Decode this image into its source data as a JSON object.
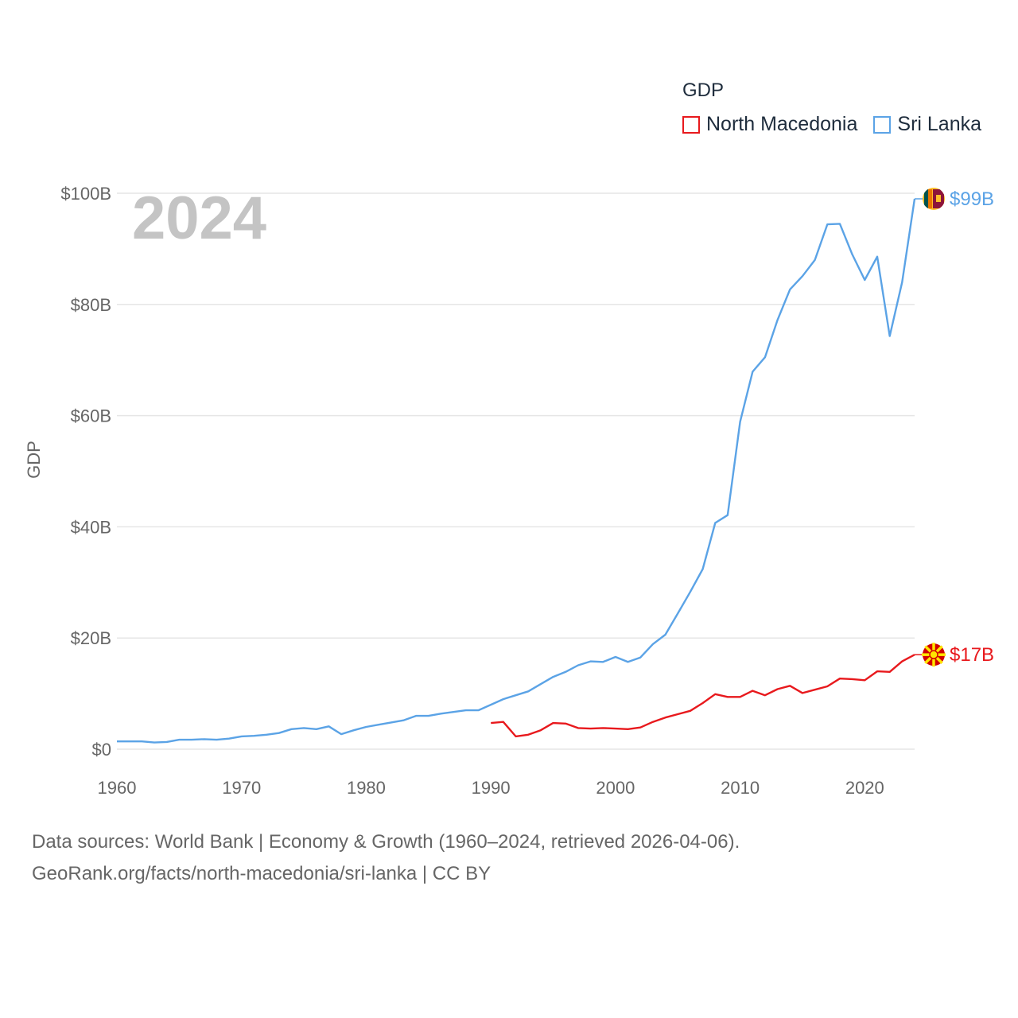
{
  "legend": {
    "title": "GDP",
    "items": [
      {
        "label": "North Macedonia",
        "color": "#e8191d"
      },
      {
        "label": "Sri Lanka",
        "color": "#5ba3e6"
      }
    ]
  },
  "source_line1": "Data sources: World Bank | Economy & Growth (1960–2024, retrieved 2026-04-06).",
  "source_line2": "GeoRank.org/facts/north-macedonia/sri-lanka | CC BY",
  "chart_data": {
    "type": "line",
    "title": "GDP",
    "year_label": "2024",
    "xlabel": "",
    "ylabel": "GDP",
    "xlim": [
      1960,
      2024
    ],
    "ylim": [
      0,
      100
    ],
    "x_ticks": [
      1960,
      1970,
      1980,
      1990,
      2000,
      2010,
      2020
    ],
    "y_ticks": [
      {
        "value": 0,
        "label": "$0"
      },
      {
        "value": 20,
        "label": "$20B"
      },
      {
        "value": 40,
        "label": "$40B"
      },
      {
        "value": 60,
        "label": "$60B"
      },
      {
        "value": 80,
        "label": "$80B"
      },
      {
        "value": 100,
        "label": "$100B"
      }
    ],
    "grid": true,
    "series": [
      {
        "name": "Sri Lanka",
        "color": "#5ba3e6",
        "end_label": "$99B",
        "flag_icon": "sri-lanka-flag-icon",
        "x": [
          1960,
          1961,
          1962,
          1963,
          1964,
          1965,
          1966,
          1967,
          1968,
          1969,
          1970,
          1971,
          1972,
          1973,
          1974,
          1975,
          1976,
          1977,
          1978,
          1979,
          1980,
          1981,
          1982,
          1983,
          1984,
          1985,
          1986,
          1987,
          1988,
          1989,
          1990,
          1991,
          1992,
          1993,
          1994,
          1995,
          1996,
          1997,
          1998,
          1999,
          2000,
          2001,
          2002,
          2003,
          2004,
          2005,
          2006,
          2007,
          2008,
          2009,
          2010,
          2011,
          2012,
          2013,
          2014,
          2015,
          2016,
          2017,
          2018,
          2019,
          2020,
          2021,
          2022,
          2023,
          2024
        ],
        "values": [
          1.4,
          1.4,
          1.4,
          1.2,
          1.3,
          1.7,
          1.7,
          1.8,
          1.7,
          1.9,
          2.3,
          2.4,
          2.6,
          2.9,
          3.6,
          3.8,
          3.6,
          4.1,
          2.7,
          3.4,
          4.0,
          4.4,
          4.8,
          5.2,
          6.0,
          6.0,
          6.4,
          6.7,
          7.0,
          7.0,
          8.0,
          9.0,
          9.7,
          10.4,
          11.7,
          13.0,
          13.9,
          15.1,
          15.8,
          15.7,
          16.6,
          15.7,
          16.5,
          18.9,
          20.6,
          24.4,
          28.3,
          32.4,
          40.7,
          42.1,
          58.9,
          67.9,
          70.5,
          77.2,
          82.7,
          85.1,
          88.0,
          94.4,
          94.5,
          89.0,
          84.4,
          88.6,
          74.3,
          84.0,
          99.0
        ]
      },
      {
        "name": "North Macedonia",
        "color": "#e8191d",
        "end_label": "$17B",
        "flag_icon": "north-macedonia-flag-icon",
        "x": [
          1990,
          1991,
          1992,
          1993,
          1994,
          1995,
          1996,
          1997,
          1998,
          1999,
          2000,
          2001,
          2002,
          2003,
          2004,
          2005,
          2006,
          2007,
          2008,
          2009,
          2010,
          2011,
          2012,
          2013,
          2014,
          2015,
          2016,
          2017,
          2018,
          2019,
          2020,
          2021,
          2022,
          2023,
          2024
        ],
        "values": [
          4.7,
          4.9,
          2.3,
          2.6,
          3.4,
          4.7,
          4.6,
          3.8,
          3.7,
          3.8,
          3.7,
          3.6,
          3.9,
          4.9,
          5.7,
          6.3,
          6.9,
          8.3,
          9.9,
          9.4,
          9.4,
          10.5,
          9.7,
          10.8,
          11.4,
          10.1,
          10.7,
          11.3,
          12.7,
          12.6,
          12.4,
          14.0,
          13.9,
          15.8,
          17.0
        ]
      }
    ]
  }
}
